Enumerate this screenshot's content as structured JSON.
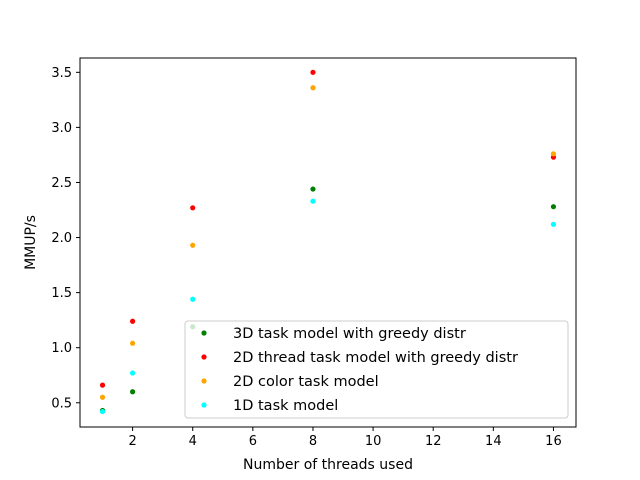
{
  "chart_data": {
    "type": "scatter",
    "title": "",
    "xlabel": "Number of threads used",
    "ylabel": "MMUP/s",
    "xlim": [
      0.25,
      16.75
    ],
    "ylim": [
      0.28,
      3.63
    ],
    "xticks": [
      2,
      4,
      6,
      8,
      10,
      12,
      14,
      16
    ],
    "yticks": [
      0.5,
      1.0,
      1.5,
      2.0,
      2.5,
      3.0,
      3.5
    ],
    "xtick_labels": [
      "2",
      "4",
      "6",
      "8",
      "10",
      "12",
      "14",
      "16"
    ],
    "ytick_labels": [
      "0.5",
      "1.0",
      "1.5",
      "2.0",
      "2.5",
      "3.0",
      "3.5"
    ],
    "grid": false,
    "legend_position": "lower-right",
    "series": [
      {
        "name": "3D task model with greedy distr",
        "color": "#008000",
        "x": [
          1,
          2,
          4,
          8,
          16
        ],
        "y": [
          0.43,
          0.6,
          1.19,
          2.44,
          2.28
        ]
      },
      {
        "name": "2D thread task model with greedy distr",
        "color": "#ff0000",
        "x": [
          1,
          2,
          4,
          8,
          16
        ],
        "y": [
          0.66,
          1.24,
          2.27,
          3.5,
          2.73
        ]
      },
      {
        "name": "2D color task model",
        "color": "#ffa500",
        "x": [
          1,
          2,
          4,
          8,
          16
        ],
        "y": [
          0.55,
          1.04,
          1.93,
          3.36,
          2.76
        ]
      },
      {
        "name": "1D task model",
        "color": "#00ffff",
        "x": [
          1,
          2,
          4,
          8,
          16
        ],
        "y": [
          0.42,
          0.77,
          1.44,
          2.33,
          2.12
        ]
      }
    ]
  }
}
